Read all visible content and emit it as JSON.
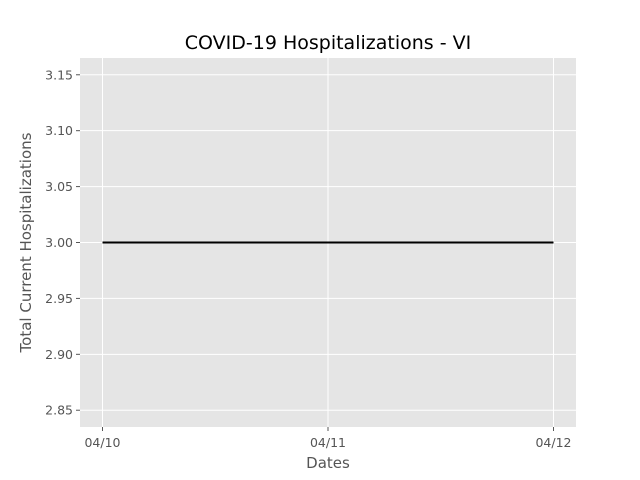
{
  "chart_data": {
    "type": "line",
    "title": "COVID-19 Hospitalizations - VI",
    "xlabel": "Dates",
    "ylabel": "Total Current Hospitalizations",
    "x": [
      "04/10",
      "04/11",
      "04/12"
    ],
    "series": [
      {
        "values": [
          3.0,
          3.0,
          3.0
        ]
      }
    ],
    "ylim": [
      2.835,
      3.165
    ],
    "yticks": [
      "2.85",
      "2.90",
      "2.95",
      "3.00",
      "3.05",
      "3.10",
      "3.15"
    ],
    "grid": true,
    "colors": {
      "plot_background": "#e5e5e5",
      "line": "#000000",
      "grid": "#ffffff",
      "text": "#555555"
    }
  }
}
